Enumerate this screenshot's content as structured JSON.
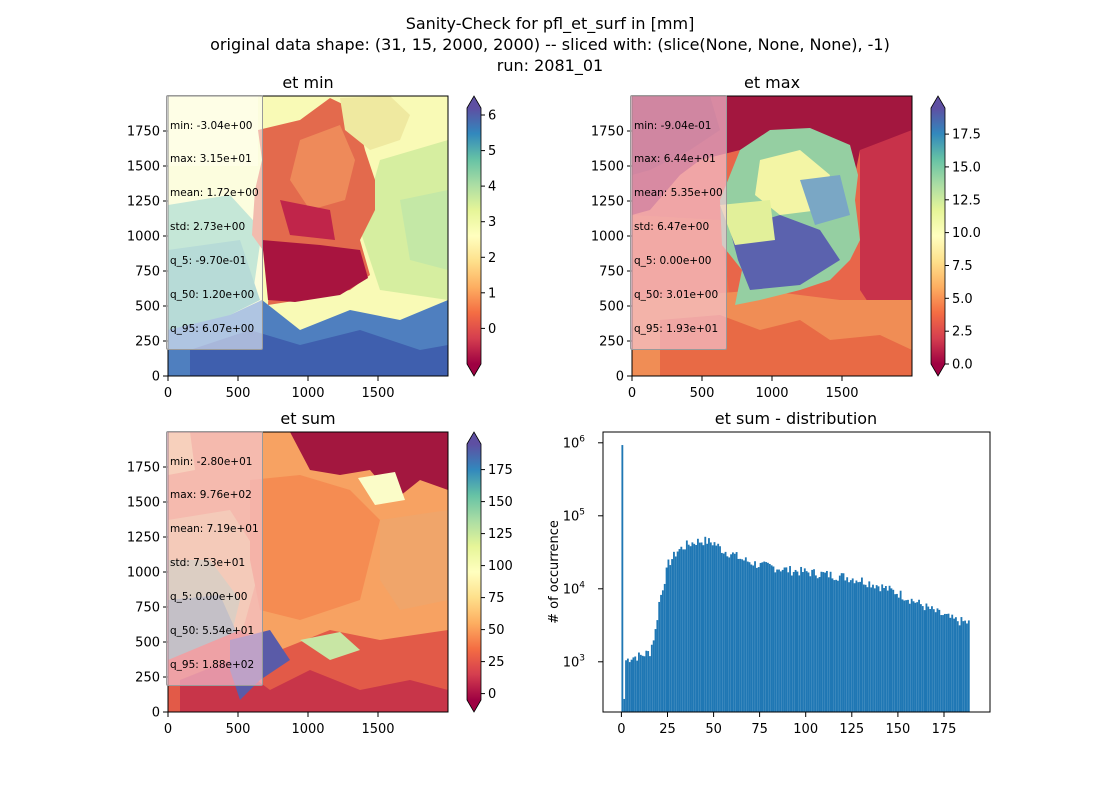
{
  "figure": {
    "suptitle": [
      "Sanity-Check for pfl_et_surf in [mm]",
      "original data shape: (31, 15, 2000, 2000) -- sliced with: (slice(None, None, None), -1)",
      "run: 2081_01"
    ]
  },
  "colormap": [
    "#9e0142",
    "#d53e4f",
    "#f46d43",
    "#fdae61",
    "#fee08b",
    "#ffffbf",
    "#e6f598",
    "#abdda4",
    "#66c2a5",
    "#3288bd",
    "#5e4fa2"
  ],
  "chart_data": [
    {
      "type": "heatmap",
      "title": "et min",
      "xlim": [
        0,
        2000
      ],
      "ylim": [
        0,
        2000
      ],
      "xticks": [
        0,
        500,
        1000,
        1500
      ],
      "yticks": [
        0,
        250,
        500,
        750,
        1000,
        1250,
        1500,
        1750
      ],
      "colorbar": {
        "min": -1,
        "max": 6.2,
        "ticks": [
          0,
          1,
          2,
          3,
          4,
          5,
          6
        ],
        "extend": "both"
      },
      "stats": [
        "min: -3.04e+00",
        "max: 3.15e+01",
        "mean: 1.72e+00",
        "std: 2.73e+00",
        "q_5: -9.70e-01",
        "q_50: 1.20e+00",
        "q_95: 6.07e+00"
      ]
    },
    {
      "type": "heatmap",
      "title": "et max",
      "xlim": [
        0,
        2000
      ],
      "ylim": [
        0,
        2000
      ],
      "xticks": [
        0,
        500,
        1000,
        1500
      ],
      "yticks": [
        0,
        250,
        500,
        750,
        1000,
        1250,
        1500,
        1750
      ],
      "colorbar": {
        "min": 0,
        "max": 19.5,
        "ticks": [
          0.0,
          2.5,
          5.0,
          7.5,
          10.0,
          12.5,
          15.0,
          17.5
        ],
        "tick_labels": [
          "0.0",
          "2.5",
          "5.0",
          "7.5",
          "10.0",
          "12.5",
          "15.0",
          "17.5"
        ],
        "extend": "both"
      },
      "stats": [
        "min: -9.04e-01",
        "max: 6.44e+01",
        "mean: 5.35e+00",
        "std: 6.47e+00",
        "q_5: 0.00e+00",
        "q_50: 3.01e+00",
        "q_95: 1.93e+01"
      ]
    },
    {
      "type": "heatmap",
      "title": "et sum",
      "xlim": [
        0,
        2000
      ],
      "ylim": [
        0,
        2000
      ],
      "xticks": [
        0,
        500,
        1000,
        1500
      ],
      "yticks": [
        0,
        250,
        500,
        750,
        1000,
        1250,
        1500,
        1750
      ],
      "colorbar": {
        "min": -5,
        "max": 195,
        "ticks": [
          0,
          25,
          50,
          75,
          100,
          125,
          150,
          175
        ],
        "extend": "both"
      },
      "stats": [
        "min: -2.80e+01",
        "max: 9.76e+02",
        "mean: 7.19e+01",
        "std: 7.53e+01",
        "q_5: 0.00e+00",
        "q_50: 5.54e+01",
        "q_95: 1.88e+02"
      ]
    },
    {
      "type": "bar",
      "title": "et sum - distribution",
      "ylabel": "# of occurrence",
      "xlabel": "",
      "yscale": "log",
      "xlim": [
        -10,
        200
      ],
      "ylim": [
        200,
        1200000
      ],
      "xticks": [
        0,
        25,
        50,
        75,
        100,
        125,
        150,
        175
      ],
      "yticks": [
        1000,
        10000,
        100000,
        1000000
      ],
      "ytick_labels": [
        "10^3",
        "10^4",
        "10^5",
        "10^6"
      ],
      "bin_width": 1,
      "histogram_profile": {
        "x": [
          0,
          1,
          2,
          5,
          10,
          15,
          18,
          20,
          25,
          30,
          35,
          40,
          45,
          50,
          55,
          60,
          65,
          70,
          75,
          80,
          90,
          100,
          110,
          120,
          130,
          140,
          150,
          160,
          170,
          180,
          188
        ],
        "y": [
          800000,
          300,
          1000,
          1100,
          1150,
          1300,
          2500,
          6000,
          20000,
          30000,
          36000,
          40000,
          41000,
          38000,
          30000,
          27000,
          23000,
          21000,
          19000,
          18500,
          16500,
          15500,
          14500,
          13500,
          12000,
          10000,
          8000,
          6000,
          4500,
          3500,
          3200
        ]
      }
    }
  ]
}
